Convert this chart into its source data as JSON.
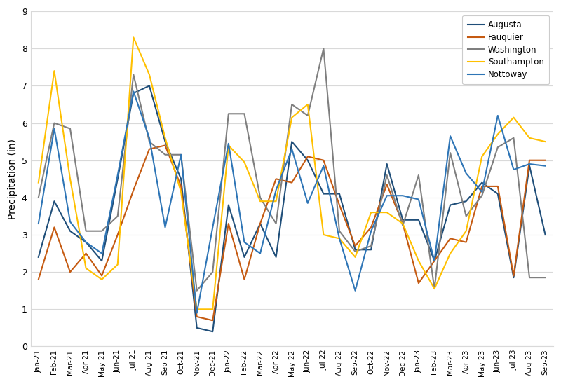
{
  "months": [
    "Jan-21",
    "Feb-21",
    "Mar-21",
    "Apr-21",
    "May-21",
    "Jun-21",
    "Jul-21",
    "Aug-21",
    "Sep-21",
    "Oct-21",
    "Nov-21",
    "Dec-21",
    "Jan-22",
    "Feb-22",
    "Mar-22",
    "Apr-22",
    "May-22",
    "Jun-22",
    "Jul-22",
    "Aug-22",
    "Sep-22",
    "Oct-22",
    "Nov-22",
    "Dec-22",
    "Jan-23",
    "Feb-23",
    "Mar-23",
    "Apr-23",
    "May-23",
    "Jun-23",
    "Jul-23",
    "Aug-23",
    "Sep-23"
  ],
  "series": {
    "Augusta": [
      2.4,
      3.9,
      3.1,
      2.8,
      2.3,
      4.5,
      6.8,
      7.0,
      5.5,
      4.5,
      0.5,
      0.4,
      3.8,
      2.4,
      3.3,
      2.4,
      5.5,
      5.0,
      4.1,
      4.1,
      2.6,
      2.6,
      4.9,
      3.4,
      3.4,
      2.3,
      3.8,
      3.9,
      4.4,
      4.1,
      1.85,
      4.85,
      3.0
    ],
    "Fauquier": [
      1.8,
      3.2,
      2.0,
      2.5,
      1.9,
      3.0,
      4.2,
      5.3,
      5.4,
      4.3,
      0.8,
      0.7,
      3.3,
      1.8,
      3.3,
      4.5,
      4.4,
      5.1,
      5.0,
      3.8,
      2.7,
      3.2,
      4.35,
      3.3,
      1.7,
      2.3,
      2.9,
      2.8,
      4.3,
      4.3,
      1.9,
      5.0,
      5.0
    ],
    "Washington": [
      4.0,
      6.0,
      5.85,
      3.1,
      3.1,
      3.5,
      7.3,
      5.5,
      5.15,
      5.15,
      1.5,
      2.0,
      6.25,
      6.25,
      4.0,
      3.3,
      6.5,
      6.2,
      8.0,
      3.1,
      2.55,
      2.7,
      4.6,
      3.25,
      4.6,
      1.55,
      5.2,
      3.5,
      4.05,
      5.35,
      5.6,
      1.85,
      1.85
    ],
    "Southampton": [
      4.4,
      7.4,
      4.5,
      2.1,
      1.8,
      2.2,
      8.3,
      7.3,
      5.6,
      4.15,
      1.0,
      1.0,
      5.4,
      4.95,
      3.9,
      3.9,
      6.15,
      6.5,
      3.0,
      2.9,
      2.4,
      3.6,
      3.6,
      3.3,
      2.3,
      1.55,
      2.5,
      3.1,
      5.1,
      5.7,
      6.15,
      5.6,
      5.5
    ],
    "Nottoway": [
      3.3,
      5.85,
      3.35,
      2.8,
      2.5,
      4.6,
      6.85,
      5.6,
      3.2,
      5.15,
      0.9,
      3.2,
      5.45,
      2.8,
      2.5,
      4.2,
      5.3,
      3.85,
      4.85,
      2.9,
      1.5,
      3.1,
      4.05,
      4.05,
      3.95,
      2.3,
      5.65,
      4.65,
      4.15,
      6.2,
      4.75,
      4.9,
      4.85
    ]
  },
  "colors": {
    "Augusta": "#1f4e79",
    "Fauquier": "#c55a11",
    "Washington": "#7f7f7f",
    "Southampton": "#ffc000",
    "Nottoway": "#2e75b6"
  },
  "ylabel": "Precipitation (in)",
  "ylim": [
    0,
    9
  ],
  "yticks": [
    0,
    1,
    2,
    3,
    4,
    5,
    6,
    7,
    8,
    9
  ],
  "legend_order": [
    "Augusta",
    "Fauquier",
    "Washington",
    "Southampton",
    "Nottoway"
  ],
  "plot_bg": "#ffffff",
  "fig_bg": "#ffffff",
  "grid_color": "#d9d9d9"
}
